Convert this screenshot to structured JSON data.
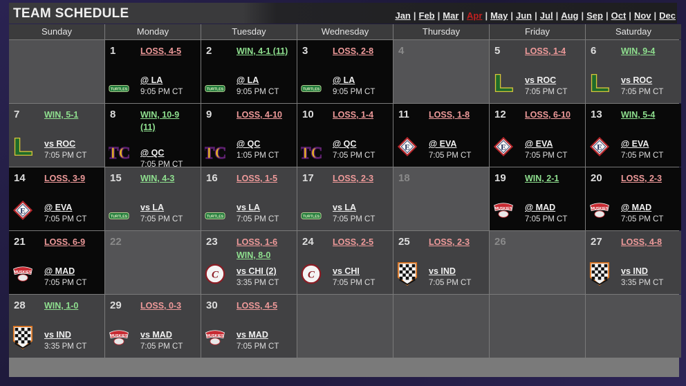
{
  "title": "TEAM SCHEDULE",
  "months": [
    {
      "label": "Jan",
      "current": false
    },
    {
      "label": "Feb",
      "current": false
    },
    {
      "label": "Mar",
      "current": false
    },
    {
      "label": "Apr",
      "current": true
    },
    {
      "label": "May",
      "current": false
    },
    {
      "label": "Jun",
      "current": false
    },
    {
      "label": "Jul",
      "current": false
    },
    {
      "label": "Aug",
      "current": false
    },
    {
      "label": "Sep",
      "current": false
    },
    {
      "label": "Oct",
      "current": false
    },
    {
      "label": "Nov",
      "current": false
    },
    {
      "label": "Dec",
      "current": false
    }
  ],
  "days": [
    "Sunday",
    "Monday",
    "Tuesday",
    "Wednesday",
    "Thursday",
    "Friday",
    "Saturday"
  ],
  "colors": {
    "win": "#8fe08f",
    "loss": "#ef9a9a",
    "current_month": "#c02020"
  },
  "cells": [
    {
      "kind": "empty"
    },
    {
      "day": "1",
      "kind": "away",
      "results": [
        {
          "text": "LOSS, 4-5",
          "type": "loss"
        }
      ],
      "logo": "turtles",
      "opponent": "@ LA",
      "time": "9:05 PM CT"
    },
    {
      "day": "2",
      "kind": "away",
      "results": [
        {
          "text": "WIN, 4-1 (11)",
          "type": "win"
        }
      ],
      "logo": "turtles",
      "opponent": "@ LA",
      "time": "9:05 PM CT"
    },
    {
      "day": "3",
      "kind": "away",
      "results": [
        {
          "text": "LOSS, 2-8",
          "type": "loss"
        }
      ],
      "logo": "turtles",
      "opponent": "@ LA",
      "time": "9:05 PM CT"
    },
    {
      "day": "4",
      "kind": "off"
    },
    {
      "day": "5",
      "kind": "home",
      "results": [
        {
          "text": "LOSS, 1-4",
          "type": "loss"
        }
      ],
      "logo": "roc",
      "opponent": "vs ROC",
      "time": "7:05 PM CT"
    },
    {
      "day": "6",
      "kind": "home",
      "results": [
        {
          "text": "WIN, 9-4",
          "type": "win"
        }
      ],
      "logo": "roc",
      "opponent": "vs ROC",
      "time": "7:05 PM CT"
    },
    {
      "day": "7",
      "kind": "home",
      "results": [
        {
          "text": "WIN, 5-1",
          "type": "win"
        }
      ],
      "logo": "roc",
      "opponent": "vs ROC",
      "time": "7:05 PM CT"
    },
    {
      "day": "8",
      "kind": "away",
      "results": [
        {
          "text": "WIN, 10-9",
          "type": "win"
        },
        {
          "text": "(11)",
          "type": "win"
        }
      ],
      "logo": "qc",
      "opponent": "@ QC",
      "time": "7:05 PM CT"
    },
    {
      "day": "9",
      "kind": "away",
      "results": [
        {
          "text": "LOSS, 4-10",
          "type": "loss"
        }
      ],
      "logo": "qc",
      "opponent": "@ QC",
      "time": "1:05 PM CT"
    },
    {
      "day": "10",
      "kind": "away",
      "results": [
        {
          "text": "LOSS, 1-4",
          "type": "loss"
        }
      ],
      "logo": "qc",
      "opponent": "@ QC",
      "time": "7:05 PM CT"
    },
    {
      "day": "11",
      "kind": "away",
      "results": [
        {
          "text": "LOSS, 1-8",
          "type": "loss"
        }
      ],
      "logo": "eva",
      "opponent": "@ EVA",
      "time": "7:05 PM CT"
    },
    {
      "day": "12",
      "kind": "away",
      "results": [
        {
          "text": "LOSS, 6-10",
          "type": "loss"
        }
      ],
      "logo": "eva",
      "opponent": "@ EVA",
      "time": "7:05 PM CT"
    },
    {
      "day": "13",
      "kind": "away",
      "results": [
        {
          "text": "WIN, 5-4",
          "type": "win"
        }
      ],
      "logo": "eva",
      "opponent": "@ EVA",
      "time": "7:05 PM CT"
    },
    {
      "day": "14",
      "kind": "away",
      "results": [
        {
          "text": "LOSS, 3-9",
          "type": "loss"
        }
      ],
      "logo": "eva",
      "opponent": "@ EVA",
      "time": "7:05 PM CT"
    },
    {
      "day": "15",
      "kind": "home",
      "results": [
        {
          "text": "WIN, 4-3",
          "type": "win"
        }
      ],
      "logo": "turtles",
      "opponent": "vs LA",
      "time": "7:05 PM CT"
    },
    {
      "day": "16",
      "kind": "home",
      "results": [
        {
          "text": "LOSS, 1-5",
          "type": "loss"
        }
      ],
      "logo": "turtles",
      "opponent": "vs LA",
      "time": "7:05 PM CT"
    },
    {
      "day": "17",
      "kind": "home",
      "results": [
        {
          "text": "LOSS, 2-3",
          "type": "loss"
        }
      ],
      "logo": "turtles",
      "opponent": "vs LA",
      "time": "7:05 PM CT"
    },
    {
      "day": "18",
      "kind": "off"
    },
    {
      "day": "19",
      "kind": "away",
      "results": [
        {
          "text": "WIN, 2-1",
          "type": "win"
        }
      ],
      "logo": "muskies",
      "opponent": "@ MAD",
      "time": "7:05 PM CT"
    },
    {
      "day": "20",
      "kind": "away",
      "results": [
        {
          "text": "LOSS, 2-3",
          "type": "loss"
        }
      ],
      "logo": "muskies",
      "opponent": "@ MAD",
      "time": "7:05 PM CT"
    },
    {
      "day": "21",
      "kind": "away",
      "results": [
        {
          "text": "LOSS, 6-9",
          "type": "loss"
        }
      ],
      "logo": "muskies",
      "opponent": "@ MAD",
      "time": "7:05 PM CT"
    },
    {
      "day": "22",
      "kind": "off"
    },
    {
      "day": "23",
      "kind": "home",
      "results": [
        {
          "text": "LOSS, 1-6",
          "type": "loss"
        },
        {
          "text": "WIN, 8-0",
          "type": "win"
        }
      ],
      "logo": "chi",
      "opponent": "vs CHI (2)",
      "time": "3:35 PM CT"
    },
    {
      "day": "24",
      "kind": "home",
      "results": [
        {
          "text": "LOSS, 2-5",
          "type": "loss"
        }
      ],
      "logo": "chi",
      "opponent": "vs CHI",
      "time": "7:05 PM CT"
    },
    {
      "day": "25",
      "kind": "home",
      "results": [
        {
          "text": "LOSS, 2-3",
          "type": "loss"
        }
      ],
      "logo": "ind",
      "opponent": "vs IND",
      "time": "7:05 PM CT"
    },
    {
      "day": "26",
      "kind": "off"
    },
    {
      "day": "27",
      "kind": "home",
      "results": [
        {
          "text": "LOSS, 4-8",
          "type": "loss"
        }
      ],
      "logo": "ind",
      "opponent": "vs IND",
      "time": "3:35 PM CT"
    },
    {
      "day": "28",
      "kind": "home",
      "results": [
        {
          "text": "WIN, 1-0",
          "type": "win"
        }
      ],
      "logo": "ind",
      "opponent": "vs IND",
      "time": "3:35 PM CT"
    },
    {
      "day": "29",
      "kind": "home",
      "results": [
        {
          "text": "LOSS, 0-3",
          "type": "loss"
        }
      ],
      "logo": "muskies",
      "opponent": "vs MAD",
      "time": "7:05 PM CT"
    },
    {
      "day": "30",
      "kind": "home",
      "results": [
        {
          "text": "LOSS, 4-5",
          "type": "loss"
        }
      ],
      "logo": "muskies",
      "opponent": "vs MAD",
      "time": "7:05 PM CT"
    },
    {
      "kind": "empty"
    },
    {
      "kind": "empty"
    },
    {
      "kind": "empty"
    },
    {
      "kind": "empty"
    }
  ],
  "logo_text": {
    "turtles": "TURTLES",
    "qc": "TC",
    "eva": "E",
    "muskies": "MUSKIES",
    "chi": "C",
    "roc": "L"
  }
}
